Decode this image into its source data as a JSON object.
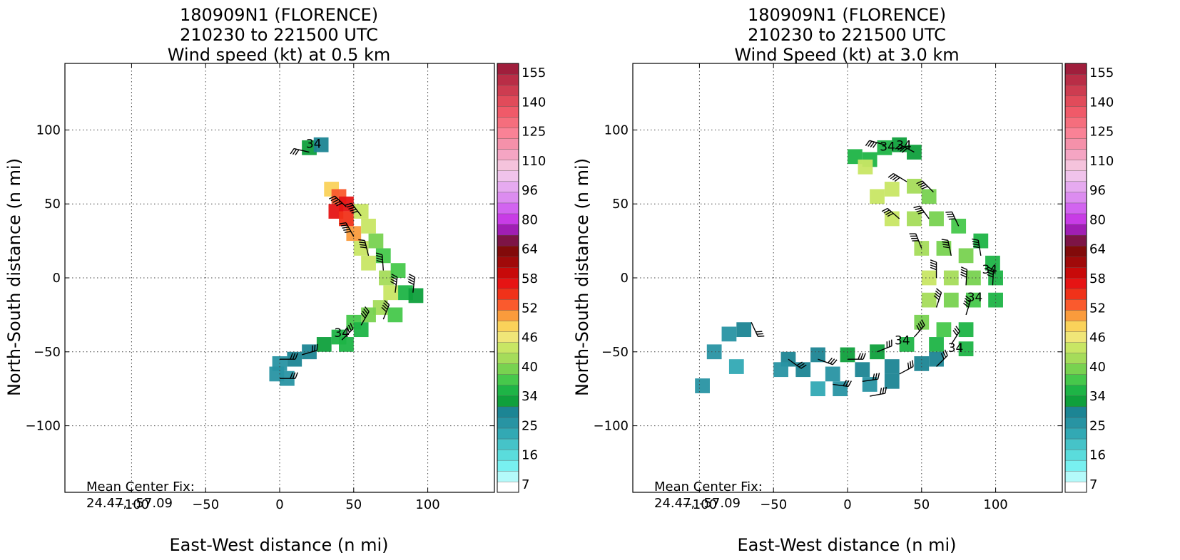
{
  "chart_data": [
    {
      "type": "heatmap",
      "title_lines": [
        "180909N1 (FLORENCE)",
        "210230 to 221500 UTC",
        "Wind speed (kt) at 0.5 km"
      ],
      "xlabel": "East-West distance (n mi)",
      "ylabel": "North-South distance (n mi)",
      "xlim": [
        -145,
        145
      ],
      "ylim": [
        -145,
        145
      ],
      "xticks": [
        -100,
        -50,
        0,
        50,
        100
      ],
      "yticks": [
        -100,
        -50,
        0,
        50,
        100
      ],
      "grid": true,
      "annotation_lines": [
        "Mean Center Fix:",
        "24.47, -57.09"
      ],
      "contour_labels": [
        {
          "text": "34",
          "x": 23,
          "y": 88
        },
        {
          "text": "34",
          "x": 42,
          "y": -40
        }
      ],
      "wind_field": [
        {
          "x": 20,
          "y": 88,
          "speed": 30
        },
        {
          "x": 28,
          "y": 90,
          "speed": 28
        },
        {
          "x": 35,
          "y": 60,
          "speed": 48
        },
        {
          "x": 40,
          "y": 55,
          "speed": 52
        },
        {
          "x": 45,
          "y": 50,
          "speed": 56
        },
        {
          "x": 38,
          "y": 45,
          "speed": 55
        },
        {
          "x": 45,
          "y": 40,
          "speed": 54
        },
        {
          "x": 55,
          "y": 45,
          "speed": 44
        },
        {
          "x": 50,
          "y": 30,
          "speed": 50
        },
        {
          "x": 60,
          "y": 35,
          "speed": 42
        },
        {
          "x": 55,
          "y": 20,
          "speed": 44
        },
        {
          "x": 65,
          "y": 25,
          "speed": 38
        },
        {
          "x": 60,
          "y": 10,
          "speed": 42
        },
        {
          "x": 70,
          "y": 15,
          "speed": 37
        },
        {
          "x": 72,
          "y": 0,
          "speed": 40
        },
        {
          "x": 80,
          "y": 5,
          "speed": 36
        },
        {
          "x": 75,
          "y": -10,
          "speed": 42
        },
        {
          "x": 85,
          "y": -10,
          "speed": 35
        },
        {
          "x": 68,
          "y": -20,
          "speed": 40
        },
        {
          "x": 78,
          "y": -25,
          "speed": 36
        },
        {
          "x": 60,
          "y": -25,
          "speed": 38
        },
        {
          "x": 50,
          "y": -30,
          "speed": 36
        },
        {
          "x": 55,
          "y": -35,
          "speed": 35
        },
        {
          "x": 40,
          "y": -40,
          "speed": 33
        },
        {
          "x": 45,
          "y": -45,
          "speed": 33
        },
        {
          "x": 30,
          "y": -45,
          "speed": 30
        },
        {
          "x": 20,
          "y": -50,
          "speed": 28
        },
        {
          "x": 10,
          "y": -55,
          "speed": 27
        },
        {
          "x": 0,
          "y": -58,
          "speed": 26
        },
        {
          "x": -2,
          "y": -65,
          "speed": 25
        },
        {
          "x": 5,
          "y": -68,
          "speed": 26
        },
        {
          "x": 92,
          "y": -12,
          "speed": 30
        }
      ],
      "wind_barbs": [
        {
          "x": 20,
          "y": 85,
          "speed": 30
        },
        {
          "x": 45,
          "y": 48,
          "speed": 55
        },
        {
          "x": 55,
          "y": 42,
          "speed": 45
        },
        {
          "x": 50,
          "y": 28,
          "speed": 50
        },
        {
          "x": 60,
          "y": 15,
          "speed": 40
        },
        {
          "x": 70,
          "y": 5,
          "speed": 40
        },
        {
          "x": 78,
          "y": -10,
          "speed": 40
        },
        {
          "x": 90,
          "y": -10,
          "speed": 35
        },
        {
          "x": 70,
          "y": -28,
          "speed": 35
        },
        {
          "x": 55,
          "y": -32,
          "speed": 35
        },
        {
          "x": 42,
          "y": -42,
          "speed": 33
        },
        {
          "x": 15,
          "y": -52,
          "speed": 30
        },
        {
          "x": 0,
          "y": -55,
          "speed": 28
        },
        {
          "x": 0,
          "y": -68,
          "speed": 26
        }
      ]
    },
    {
      "type": "heatmap",
      "title_lines": [
        "180909N1 (FLORENCE)",
        "210230 to 221500 UTC",
        "Wind Speed (kt) at 3.0 km"
      ],
      "xlabel": "East-West distance (n mi)",
      "ylabel": "North-South distance (n mi)",
      "xlim": [
        -145,
        145
      ],
      "ylim": [
        -145,
        145
      ],
      "xticks": [
        -100,
        -50,
        0,
        50,
        100
      ],
      "yticks": [
        -100,
        -50,
        0,
        50,
        100
      ],
      "grid": true,
      "annotation_lines": [
        "Mean Center Fix:",
        "24.47, -57.09"
      ],
      "contour_labels": [
        {
          "text": "34",
          "x": 27,
          "y": 86
        },
        {
          "text": "34",
          "x": 38,
          "y": 87
        },
        {
          "text": "34",
          "x": 96,
          "y": 3
        },
        {
          "text": "34",
          "x": 86,
          "y": -16
        },
        {
          "text": "34",
          "x": 37,
          "y": -45
        },
        {
          "text": "34",
          "x": 73,
          "y": -50
        }
      ],
      "wind_field": [
        {
          "x": 5,
          "y": 82,
          "speed": 33
        },
        {
          "x": 15,
          "y": 80,
          "speed": 35
        },
        {
          "x": 25,
          "y": 88,
          "speed": 33
        },
        {
          "x": 35,
          "y": 90,
          "speed": 30
        },
        {
          "x": 45,
          "y": 85,
          "speed": 32
        },
        {
          "x": 12,
          "y": 75,
          "speed": 44
        },
        {
          "x": 20,
          "y": 55,
          "speed": 44
        },
        {
          "x": 30,
          "y": 60,
          "speed": 42
        },
        {
          "x": 45,
          "y": 62,
          "speed": 40
        },
        {
          "x": 55,
          "y": 55,
          "speed": 38
        },
        {
          "x": 30,
          "y": 40,
          "speed": 42
        },
        {
          "x": 45,
          "y": 40,
          "speed": 41
        },
        {
          "x": 60,
          "y": 40,
          "speed": 39
        },
        {
          "x": 75,
          "y": 35,
          "speed": 37
        },
        {
          "x": 90,
          "y": 25,
          "speed": 35
        },
        {
          "x": 50,
          "y": 20,
          "speed": 40
        },
        {
          "x": 65,
          "y": 20,
          "speed": 39
        },
        {
          "x": 80,
          "y": 15,
          "speed": 38
        },
        {
          "x": 98,
          "y": 10,
          "speed": 34
        },
        {
          "x": 55,
          "y": 0,
          "speed": 42
        },
        {
          "x": 70,
          "y": 0,
          "speed": 40
        },
        {
          "x": 85,
          "y": 0,
          "speed": 38
        },
        {
          "x": 100,
          "y": 0,
          "speed": 35
        },
        {
          "x": 55,
          "y": -15,
          "speed": 40
        },
        {
          "x": 70,
          "y": -15,
          "speed": 39
        },
        {
          "x": 85,
          "y": -15,
          "speed": 37
        },
        {
          "x": 100,
          "y": -15,
          "speed": 34
        },
        {
          "x": 50,
          "y": -30,
          "speed": 38
        },
        {
          "x": 65,
          "y": -35,
          "speed": 36
        },
        {
          "x": 80,
          "y": -35,
          "speed": 35
        },
        {
          "x": 40,
          "y": -45,
          "speed": 35
        },
        {
          "x": 60,
          "y": -45,
          "speed": 35
        },
        {
          "x": 80,
          "y": -48,
          "speed": 34
        },
        {
          "x": 20,
          "y": -50,
          "speed": 32
        },
        {
          "x": 0,
          "y": -52,
          "speed": 30
        },
        {
          "x": -20,
          "y": -52,
          "speed": 28
        },
        {
          "x": -40,
          "y": -55,
          "speed": 27
        },
        {
          "x": 30,
          "y": -60,
          "speed": 28
        },
        {
          "x": 10,
          "y": -62,
          "speed": 27
        },
        {
          "x": -10,
          "y": -65,
          "speed": 26
        },
        {
          "x": -30,
          "y": -62,
          "speed": 27
        },
        {
          "x": -45,
          "y": -62,
          "speed": 26
        },
        {
          "x": 50,
          "y": -58,
          "speed": 28
        },
        {
          "x": 60,
          "y": -55,
          "speed": 28
        },
        {
          "x": 15,
          "y": -72,
          "speed": 26
        },
        {
          "x": -5,
          "y": -75,
          "speed": 25
        },
        {
          "x": -20,
          "y": -75,
          "speed": 21
        },
        {
          "x": 30,
          "y": -70,
          "speed": 27
        },
        {
          "x": -70,
          "y": -35,
          "speed": 27
        },
        {
          "x": -80,
          "y": -38,
          "speed": 26
        },
        {
          "x": -75,
          "y": -60,
          "speed": 21
        },
        {
          "x": -98,
          "y": -73,
          "speed": 26
        },
        {
          "x": -90,
          "y": -50,
          "speed": 26
        }
      ],
      "wind_barbs": [
        {
          "x": 25,
          "y": 90,
          "speed": 35
        },
        {
          "x": 45,
          "y": 85,
          "speed": 35
        },
        {
          "x": 40,
          "y": 65,
          "speed": 40
        },
        {
          "x": 58,
          "y": 58,
          "speed": 40
        },
        {
          "x": 35,
          "y": 40,
          "speed": 40
        },
        {
          "x": 55,
          "y": 40,
          "speed": 40
        },
        {
          "x": 75,
          "y": 35,
          "speed": 38
        },
        {
          "x": 50,
          "y": 20,
          "speed": 40
        },
        {
          "x": 70,
          "y": 15,
          "speed": 38
        },
        {
          "x": 90,
          "y": 15,
          "speed": 35
        },
        {
          "x": 60,
          "y": 0,
          "speed": 40
        },
        {
          "x": 80,
          "y": -5,
          "speed": 38
        },
        {
          "x": 98,
          "y": -5,
          "speed": 35
        },
        {
          "x": 60,
          "y": -20,
          "speed": 38
        },
        {
          "x": 80,
          "y": -25,
          "speed": 36
        },
        {
          "x": 45,
          "y": -40,
          "speed": 35
        },
        {
          "x": 70,
          "y": -45,
          "speed": 34
        },
        {
          "x": 20,
          "y": -50,
          "speed": 32
        },
        {
          "x": 0,
          "y": -55,
          "speed": 30
        },
        {
          "x": -20,
          "y": -55,
          "speed": 28
        },
        {
          "x": -40,
          "y": -55,
          "speed": 28
        },
        {
          "x": 35,
          "y": -65,
          "speed": 28
        },
        {
          "x": 10,
          "y": -70,
          "speed": 27
        },
        {
          "x": -10,
          "y": -72,
          "speed": 26
        },
        {
          "x": -65,
          "y": -30,
          "speed": 27
        },
        {
          "x": 60,
          "y": -60,
          "speed": 28
        },
        {
          "x": 15,
          "y": -80,
          "speed": 26
        }
      ]
    }
  ],
  "colorbar": {
    "tick_labels": [
      "7",
      "16",
      "25",
      "34",
      "40",
      "46",
      "52",
      "58",
      "64",
      "80",
      "96",
      "110",
      "125",
      "140",
      "155"
    ],
    "colors": [
      "#ffffff",
      "#b4fafa",
      "#78f0f0",
      "#5adcdc",
      "#46c3c8",
      "#32a9b4",
      "#2894a3",
      "#1c8594",
      "#0fa03c",
      "#1eb446",
      "#46c84b",
      "#78d250",
      "#a5dc5a",
      "#c8e664",
      "#f0e678",
      "#fad25a",
      "#fa9b3c",
      "#fa5a2d",
      "#f03219",
      "#e61414",
      "#c80a0a",
      "#a00a0a",
      "#820a0a",
      "#7d1446",
      "#a01eb4",
      "#c83ce6",
      "#d264f0",
      "#dc8cf0",
      "#e6aaf0",
      "#f0c3eb",
      "#f5c3dc",
      "#f5a5c3",
      "#f591aa",
      "#fa8296",
      "#f56e7d",
      "#f05a69",
      "#e14b5a",
      "#cd3c50",
      "#b92d46",
      "#a01e3c"
    ]
  }
}
